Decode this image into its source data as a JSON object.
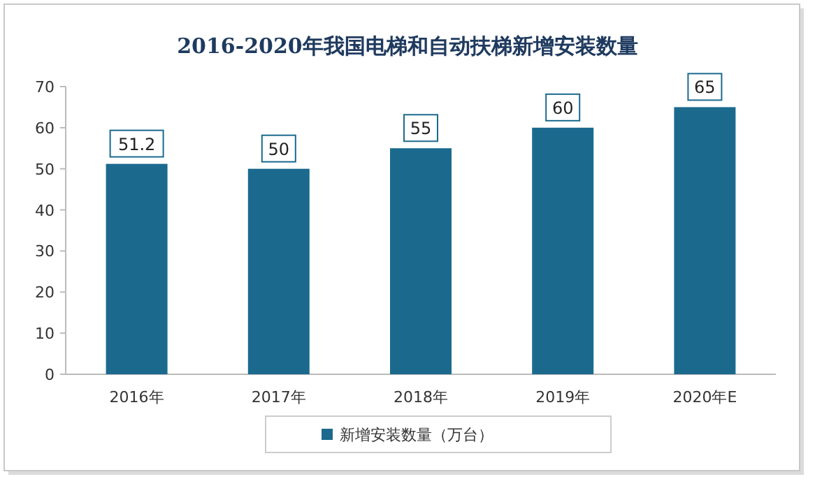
{
  "chart_data": {
    "type": "bar",
    "title": "2016-2020年我国电梯和自动扶梯新增安装数量",
    "categories": [
      "2016年",
      "2017年",
      "2018年",
      "2019年",
      "2020年E"
    ],
    "series": [
      {
        "name": "新增安装数量（万台）",
        "color": "#1b6a8e",
        "values": [
          51.2,
          50,
          55,
          60,
          65
        ]
      }
    ],
    "ylim": [
      0,
      70
    ],
    "yticks": [
      0,
      10,
      20,
      30,
      40,
      50,
      60,
      70
    ],
    "grid": false,
    "legend": "bottom",
    "data_labels": true
  }
}
